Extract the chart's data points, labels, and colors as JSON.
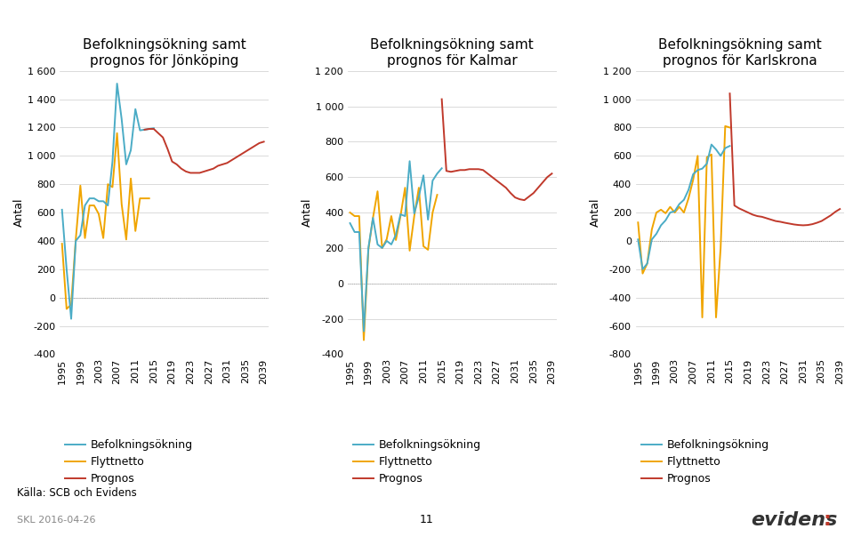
{
  "titles": [
    "Befolkningsökning samt\nprognos för Jönköping",
    "Befolkningsökning samt\nprognos för Kalmar",
    "Befolkningsökning samt\nprognos för Karlskrona"
  ],
  "ylabel": "Antal",
  "source_text": "Källa: SCB och Evidens",
  "date_text": "SKL 2016-04-26",
  "page_number": "11",
  "colors": {
    "bef": "#4BACC6",
    "flytt": "#F0A500",
    "prognos": "#C0392B"
  },
  "jonkoping_bef_years": [
    1995,
    1996,
    1997,
    1998,
    1999,
    2000,
    2001,
    2002,
    2003,
    2004,
    2005,
    2006,
    2007,
    2008,
    2009,
    2010,
    2011,
    2012,
    2013,
    2014,
    2015
  ],
  "jonkoping_bef_vals": [
    620,
    200,
    -150,
    400,
    440,
    650,
    700,
    700,
    680,
    680,
    650,
    960,
    1510,
    1260,
    940,
    1040,
    1330,
    1180,
    1185,
    1190,
    1195
  ],
  "jonkoping_flytt_years": [
    1995,
    1996,
    1997,
    1998,
    1999,
    2000,
    2001,
    2002,
    2003,
    2004,
    2005,
    2006,
    2007,
    2008,
    2009,
    2010,
    2011,
    2012,
    2013,
    2014
  ],
  "jonkoping_flytt_vals": [
    380,
    -80,
    -50,
    410,
    790,
    420,
    650,
    650,
    590,
    420,
    800,
    780,
    1160,
    660,
    410,
    840,
    470,
    700,
    700,
    700
  ],
  "jonkoping_prog_years": [
    2013,
    2014,
    2015,
    2016,
    2017,
    2018,
    2019,
    2020,
    2021,
    2022,
    2023,
    2024,
    2025,
    2026,
    2027,
    2028,
    2029,
    2030,
    2031,
    2032,
    2033,
    2034,
    2035,
    2036,
    2037,
    2038,
    2039
  ],
  "jonkoping_prog_vals": [
    1185,
    1190,
    1190,
    1160,
    1130,
    1050,
    960,
    940,
    910,
    890,
    880,
    880,
    880,
    890,
    900,
    910,
    930,
    940,
    950,
    970,
    990,
    1010,
    1030,
    1050,
    1070,
    1090,
    1100
  ],
  "kalmar_bef_years": [
    1995,
    1996,
    1997,
    1998,
    1999,
    2000,
    2001,
    2002,
    2003,
    2004,
    2005,
    2006,
    2007,
    2008,
    2009,
    2010,
    2011,
    2012,
    2013,
    2014,
    2015
  ],
  "kalmar_bef_vals": [
    340,
    290,
    290,
    -270,
    200,
    370,
    220,
    200,
    240,
    220,
    275,
    390,
    380,
    690,
    395,
    490,
    610,
    360,
    580,
    620,
    650
  ],
  "kalmar_flytt_years": [
    1995,
    1996,
    1997,
    1998,
    1999,
    2000,
    2001,
    2002,
    2003,
    2004,
    2005,
    2006,
    2007,
    2008,
    2009,
    2010,
    2011,
    2012,
    2013,
    2014
  ],
  "kalmar_flytt_vals": [
    400,
    380,
    380,
    -320,
    190,
    370,
    520,
    200,
    250,
    380,
    245,
    380,
    540,
    185,
    380,
    540,
    210,
    190,
    400,
    500
  ],
  "kalmar_prog_years": [
    2015,
    2016,
    2017,
    2018,
    2019,
    2020,
    2021,
    2022,
    2023,
    2024,
    2025,
    2026,
    2027,
    2028,
    2029,
    2030,
    2031,
    2032,
    2033,
    2034,
    2035,
    2036,
    2037,
    2038,
    2039
  ],
  "kalmar_prog_vals": [
    1040,
    635,
    630,
    635,
    640,
    640,
    645,
    645,
    645,
    640,
    620,
    600,
    580,
    560,
    540,
    510,
    485,
    475,
    470,
    490,
    510,
    540,
    570,
    600,
    620
  ],
  "karlskrona_bef_years": [
    1995,
    1996,
    1997,
    1998,
    1999,
    2000,
    2001,
    2002,
    2003,
    2004,
    2005,
    2006,
    2007,
    2008,
    2009,
    2010,
    2011,
    2012,
    2013,
    2014,
    2015
  ],
  "karlskrona_bef_vals": [
    10,
    -200,
    -160,
    10,
    50,
    110,
    145,
    200,
    210,
    260,
    290,
    360,
    470,
    500,
    510,
    545,
    680,
    645,
    600,
    655,
    670
  ],
  "karlskrona_flytt_years": [
    1995,
    1996,
    1997,
    1998,
    1999,
    2000,
    2001,
    2002,
    2003,
    2004,
    2005,
    2006,
    2007,
    2008,
    2009,
    2010,
    2011,
    2012,
    2013,
    2014,
    2015
  ],
  "karlskrona_flytt_vals": [
    130,
    -230,
    -160,
    80,
    200,
    220,
    195,
    240,
    200,
    240,
    200,
    300,
    430,
    600,
    -540,
    590,
    610,
    -540,
    -50,
    810,
    800
  ],
  "karlskrona_prog_years": [
    2015,
    2016,
    2017,
    2018,
    2019,
    2020,
    2021,
    2022,
    2023,
    2024,
    2025,
    2026,
    2027,
    2028,
    2029,
    2030,
    2031,
    2032,
    2033,
    2034,
    2035,
    2036,
    2037,
    2038,
    2039
  ],
  "karlskrona_prog_vals": [
    1040,
    250,
    230,
    215,
    200,
    185,
    175,
    170,
    160,
    150,
    140,
    135,
    128,
    122,
    116,
    112,
    110,
    112,
    118,
    128,
    140,
    160,
    180,
    205,
    225
  ],
  "ylim1": [
    -400,
    1600
  ],
  "ylim2": [
    -400,
    1200
  ],
  "ylim3": [
    -800,
    1200
  ],
  "yticks1": [
    -400,
    -200,
    0,
    200,
    400,
    600,
    800,
    1000,
    1200,
    1400,
    1600
  ],
  "yticks2": [
    -400,
    -200,
    0,
    200,
    400,
    600,
    800,
    1000,
    1200
  ],
  "yticks3": [
    -800,
    -600,
    -400,
    -200,
    0,
    200,
    400,
    600,
    800,
    1000,
    1200
  ],
  "xticks": [
    1995,
    1999,
    2003,
    2007,
    2011,
    2015,
    2019,
    2023,
    2027,
    2031,
    2035,
    2039
  ],
  "legend_labels": [
    "Befolkningsökning",
    "Flyttnetto",
    "Prognos"
  ],
  "title_fontsize": 11,
  "label_fontsize": 9,
  "tick_fontsize": 8,
  "legend_fontsize": 9
}
